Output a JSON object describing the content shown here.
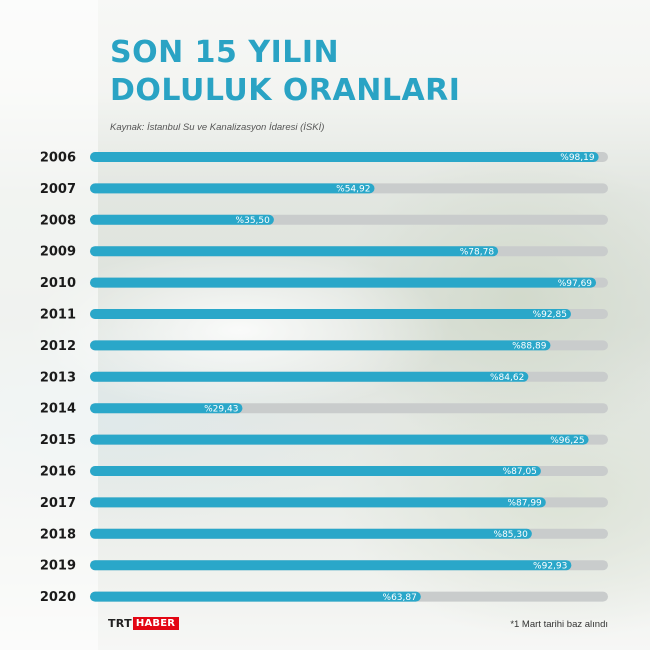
{
  "colors": {
    "title": "#2aa3c4",
    "bar": "#2aa7c9",
    "track": "#c9cccc",
    "logo_red": "#e30613"
  },
  "header": {
    "title_line1": "SON 15 YILIN",
    "title_line2": "DOLULUK ORANLARI",
    "source": "Kaynak: İstanbul Su ve Kanalizasyon İdaresi (İSKİ)"
  },
  "footer": {
    "logo_trt": "TRT",
    "logo_haber": "HABER",
    "note": "*1 Mart tarihi baz alındı"
  },
  "chart_data": {
    "type": "bar",
    "orientation": "horizontal",
    "ylim": [
      0,
      100
    ],
    "categories": [
      "2006",
      "2007",
      "2008",
      "2009",
      "2010",
      "2011",
      "2012",
      "2013",
      "2014",
      "2015",
      "2016",
      "2017",
      "2018",
      "2019",
      "2020"
    ],
    "values": [
      98.19,
      54.92,
      35.5,
      78.78,
      97.69,
      92.85,
      88.89,
      84.62,
      29.43,
      96.25,
      87.05,
      87.99,
      85.3,
      92.93,
      63.87
    ],
    "value_labels": [
      "%98,19",
      "%54,92",
      "%35,50",
      "%78,78",
      "%97,69",
      "%92,85",
      "%88,89",
      "%84,62",
      "%29,43",
      "%96,25",
      "%87,05",
      "%87,99",
      "%85,30",
      "%92,93",
      "%63,87"
    ]
  }
}
